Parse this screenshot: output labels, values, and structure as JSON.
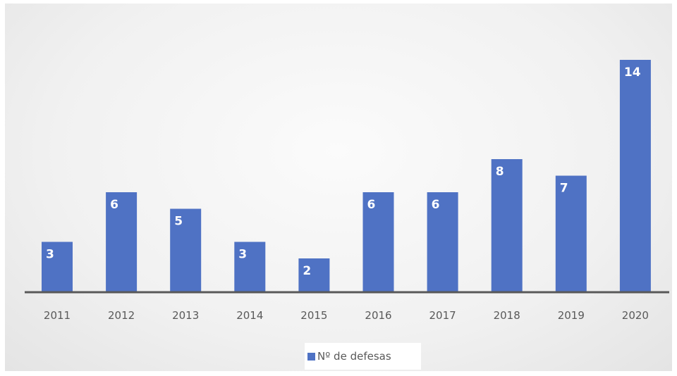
{
  "chart_data": {
    "type": "bar",
    "categories": [
      "2011",
      "2012",
      "2013",
      "2014",
      "2015",
      "2016",
      "2017",
      "2018",
      "2019",
      "2020"
    ],
    "series": [
      {
        "name": "Nº de defesas",
        "values": [
          3,
          6,
          5,
          3,
          2,
          6,
          6,
          8,
          7,
          14
        ],
        "color": "#4f72c4"
      }
    ],
    "data_labels": [
      "3",
      "6",
      "5",
      "3",
      "2",
      "6",
      "6",
      "8",
      "7",
      "14"
    ],
    "ylim": [
      0,
      14
    ],
    "grid": false,
    "legend_position": "bottom",
    "title": "",
    "xlabel": "",
    "ylabel": ""
  },
  "colors": {
    "bar": "#4f72c4",
    "axis": "#595959",
    "label": "#ffffff"
  }
}
